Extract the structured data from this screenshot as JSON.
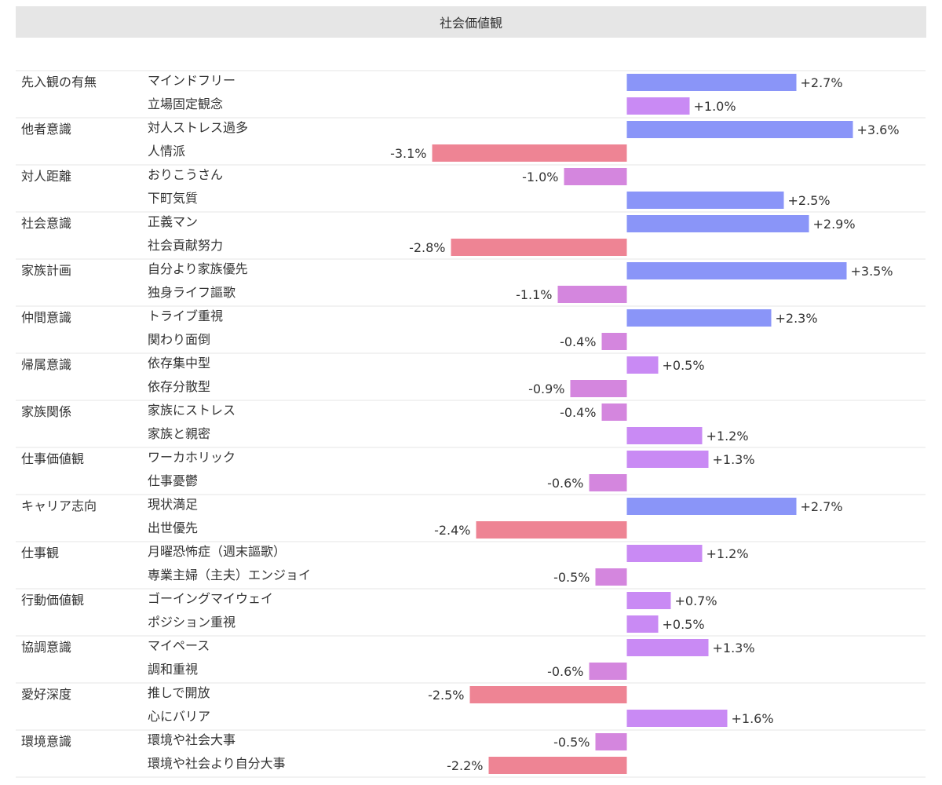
{
  "header": {
    "title": "社会価値観"
  },
  "chart_data": {
    "type": "bar",
    "orientation": "horizontal",
    "title": "社会価値観",
    "x_unit": "%",
    "xlim": [
      -4.0,
      4.0
    ],
    "groups": [
      {
        "label": "先入観の有無",
        "items": [
          {
            "label": "マインドフリー",
            "value": 2.7,
            "value_label": "+2.7%"
          },
          {
            "label": "立場固定観念",
            "value": 1.0,
            "value_label": "+1.0%"
          }
        ]
      },
      {
        "label": "他者意識",
        "items": [
          {
            "label": "対人ストレス過多",
            "value": 3.6,
            "value_label": "+3.6%"
          },
          {
            "label": "人情派",
            "value": -3.1,
            "value_label": "-3.1%"
          }
        ]
      },
      {
        "label": "対人距離",
        "items": [
          {
            "label": "おりこうさん",
            "value": -1.0,
            "value_label": "-1.0%"
          },
          {
            "label": "下町気質",
            "value": 2.5,
            "value_label": "+2.5%"
          }
        ]
      },
      {
        "label": "社会意識",
        "items": [
          {
            "label": "正義マン",
            "value": 2.9,
            "value_label": "+2.9%"
          },
          {
            "label": "社会貢献努力",
            "value": -2.8,
            "value_label": "-2.8%"
          }
        ]
      },
      {
        "label": "家族計画",
        "items": [
          {
            "label": "自分より家族優先",
            "value": 3.5,
            "value_label": "+3.5%"
          },
          {
            "label": "独身ライフ謳歌",
            "value": -1.1,
            "value_label": "-1.1%"
          }
        ]
      },
      {
        "label": "仲間意識",
        "items": [
          {
            "label": "トライブ重視",
            "value": 2.3,
            "value_label": "+2.3%"
          },
          {
            "label": "関わり面倒",
            "value": -0.4,
            "value_label": "-0.4%"
          }
        ]
      },
      {
        "label": "帰属意識",
        "items": [
          {
            "label": "依存集中型",
            "value": 0.5,
            "value_label": "+0.5%"
          },
          {
            "label": "依存分散型",
            "value": -0.9,
            "value_label": "-0.9%"
          }
        ]
      },
      {
        "label": "家族関係",
        "items": [
          {
            "label": "家族にストレス",
            "value": -0.4,
            "value_label": "-0.4%"
          },
          {
            "label": "家族と親密",
            "value": 1.2,
            "value_label": "+1.2%"
          }
        ]
      },
      {
        "label": "仕事価値観",
        "items": [
          {
            "label": "ワーカホリック",
            "value": 1.3,
            "value_label": "+1.3%"
          },
          {
            "label": "仕事憂鬱",
            "value": -0.6,
            "value_label": "-0.6%"
          }
        ]
      },
      {
        "label": "キャリア志向",
        "items": [
          {
            "label": "現状満足",
            "value": 2.7,
            "value_label": "+2.7%"
          },
          {
            "label": "出世優先",
            "value": -2.4,
            "value_label": "-2.4%"
          }
        ]
      },
      {
        "label": "仕事観",
        "items": [
          {
            "label": "月曜恐怖症（週末謳歌）",
            "value": 1.2,
            "value_label": "+1.2%"
          },
          {
            "label": "専業主婦（主夫）エンジョイ",
            "value": -0.5,
            "value_label": "-0.5%"
          }
        ]
      },
      {
        "label": "行動価値観",
        "items": [
          {
            "label": "ゴーイングマイウェイ",
            "value": 0.7,
            "value_label": "+0.7%"
          },
          {
            "label": "ポジション重視",
            "value": 0.5,
            "value_label": "+0.5%"
          }
        ]
      },
      {
        "label": "協調意識",
        "items": [
          {
            "label": "マイペース",
            "value": 1.3,
            "value_label": "+1.3%"
          },
          {
            "label": "調和重視",
            "value": -0.6,
            "value_label": "-0.6%"
          }
        ]
      },
      {
        "label": "愛好深度",
        "items": [
          {
            "label": "推しで開放",
            "value": -2.5,
            "value_label": "-2.5%"
          },
          {
            "label": "心にバリア",
            "value": 1.6,
            "value_label": "+1.6%"
          }
        ]
      },
      {
        "label": "環境意識",
        "items": [
          {
            "label": "環境や社会大事",
            "value": -0.5,
            "value_label": "-0.5%"
          },
          {
            "label": "環境や社会より自分大事",
            "value": -2.2,
            "value_label": "-2.2%"
          }
        ]
      }
    ],
    "colors": {
      "positive_strong": "#8a95f8",
      "positive_weak": "#c98af4",
      "negative_strong": "#ee8494",
      "negative_weak": "#d486de",
      "grid": "#e4e4e4"
    }
  }
}
